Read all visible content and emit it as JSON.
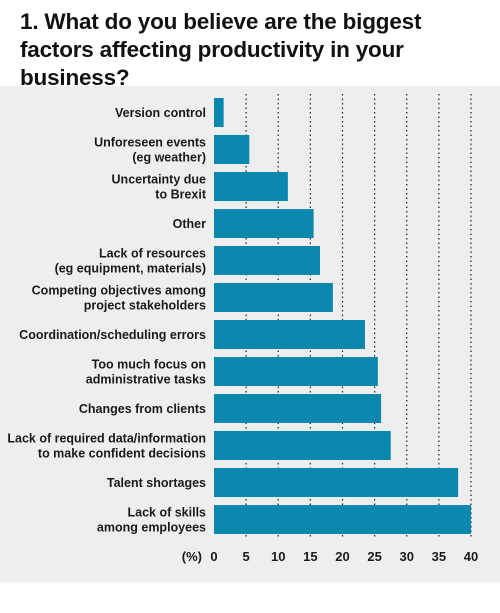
{
  "title": "1. What do you believe are the biggest factors affecting productivity in your business?",
  "colors": {
    "bar": "#0a87ad",
    "panel_background": "#eeeeee",
    "gridline": "#222222",
    "text": "#111111"
  },
  "chart_data": {
    "type": "bar",
    "orientation": "horizontal",
    "title": "1. What do you believe are the biggest factors affecting productivity in your business?",
    "xlabel": "(%)",
    "ylabel": "",
    "xlim": [
      0,
      40
    ],
    "xticks": [
      0,
      5,
      10,
      15,
      20,
      25,
      30,
      35,
      40
    ],
    "grid": "dotted vertical gridlines",
    "legend": "none",
    "categories": [
      "Version control",
      "Unforeseen events\n(eg weather)",
      "Uncertainty due\nto Brexit",
      "Other",
      "Lack of resources\n(eg equipment, materials)",
      "Competing objectives among\nproject stakeholders",
      "Coordination/scheduling errors",
      "Too much focus on\nadministrative tasks",
      "Changes from clients",
      "Lack of required data/information\nto make confident decisions",
      "Talent shortages",
      "Lack of skills\namong employees"
    ],
    "values": [
      1.5,
      5.5,
      11.5,
      15.5,
      16.5,
      18.5,
      23.5,
      25.5,
      26,
      27.5,
      38,
      40
    ]
  }
}
